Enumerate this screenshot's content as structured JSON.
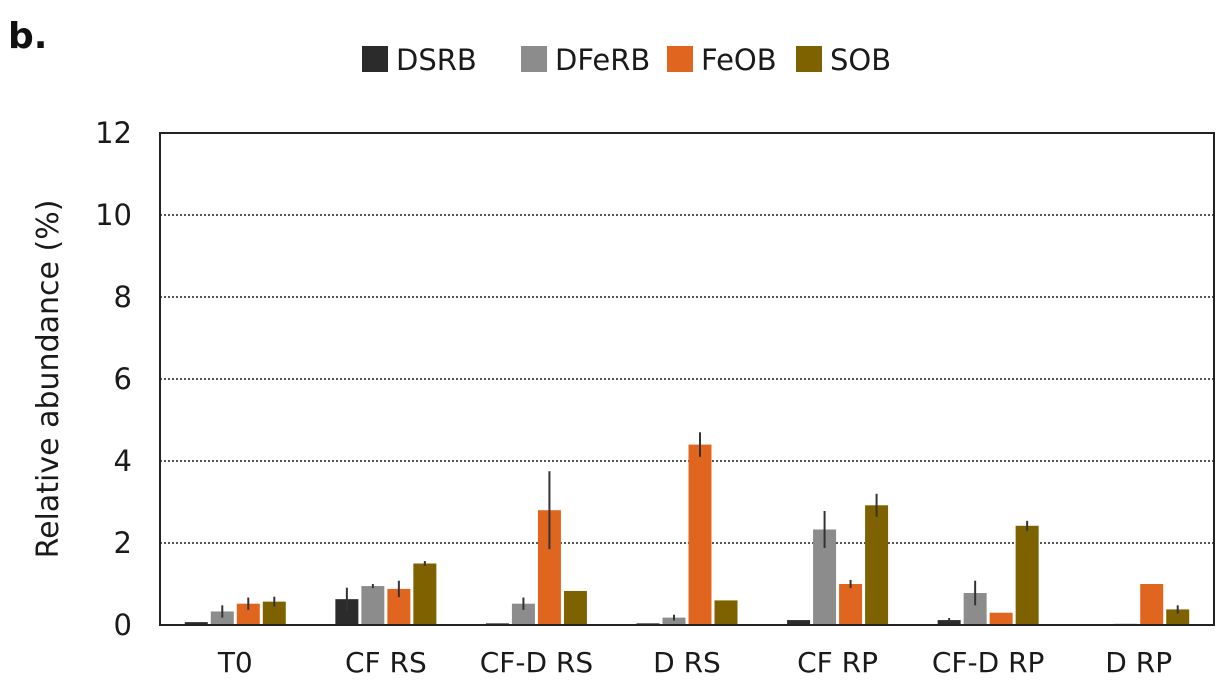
{
  "panel_label": "b.",
  "chart_data": {
    "type": "bar",
    "ylabel": "Relative abundance (%)",
    "ylim": [
      0,
      12
    ],
    "yticks": [
      0,
      2,
      4,
      6,
      8,
      10,
      12
    ],
    "grid": "horizontal-dotted",
    "legend_position": "top",
    "categories": [
      "T0",
      "CF RS",
      "CF-D RS",
      "D RS",
      "CF RP",
      "CF-D RP",
      "D RP"
    ],
    "series": [
      {
        "name": "DSRB",
        "color": "#2b2b2b",
        "values": [
          0.07,
          0.63,
          0.04,
          0.04,
          0.12,
          0.12,
          0.02
        ],
        "errors": [
          0.0,
          0.28,
          0.0,
          0.0,
          0.0,
          0.05,
          0.0
        ]
      },
      {
        "name": "DFeRB",
        "color": "#8c8c8c",
        "values": [
          0.33,
          0.95,
          0.52,
          0.18,
          2.33,
          0.78,
          0.03
        ],
        "errors": [
          0.15,
          0.05,
          0.15,
          0.07,
          0.45,
          0.3,
          0.0
        ]
      },
      {
        "name": "FeOB",
        "color": "#e0661f",
        "values": [
          0.52,
          0.88,
          2.8,
          4.4,
          1.0,
          0.3,
          1.0
        ],
        "errors": [
          0.15,
          0.2,
          0.95,
          0.3,
          0.1,
          0.0,
          0.0
        ]
      },
      {
        "name": "SOB",
        "color": "#7f6200",
        "values": [
          0.57,
          1.5,
          0.83,
          0.6,
          2.92,
          2.42,
          0.38
        ],
        "errors": [
          0.12,
          0.06,
          0.0,
          0.0,
          0.28,
          0.12,
          0.1
        ]
      }
    ]
  }
}
